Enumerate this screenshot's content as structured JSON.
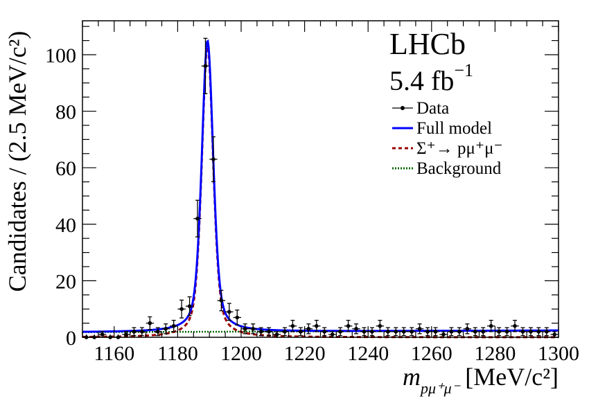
{
  "chart_data": {
    "type": "scatter",
    "experiment": "LHCb",
    "luminosity_text": "5.4 fb",
    "luminosity_exponent": "−1",
    "xlabel_math": "m",
    "xlabel_subscript": "pμ⁺μ⁻",
    "xlabel_units": "[MeV/c²]",
    "ylabel": "Candidates / (2.5 MeV/c²)",
    "xlim": [
      1150,
      1300
    ],
    "ylim": [
      0,
      112
    ],
    "x_ticks": [
      1160,
      1180,
      1200,
      1220,
      1240,
      1260,
      1280,
      1300
    ],
    "y_ticks": [
      0,
      20,
      40,
      60,
      80,
      100
    ],
    "legend_position": "top-right",
    "legend": [
      {
        "key": "data",
        "label": "Data",
        "style": "marker",
        "color": "#000000"
      },
      {
        "key": "full",
        "label": "Full model",
        "style": "solid",
        "color": "#0000ff"
      },
      {
        "key": "signal",
        "label": "Σ⁺→ pμ⁺μ⁻",
        "style": "dashed",
        "color": "#990000"
      },
      {
        "key": "background",
        "label": "Background",
        "style": "dotted",
        "color": "#006600"
      }
    ],
    "bin_width": 2.5,
    "data_points": {
      "x": [
        1151.25,
        1153.75,
        1156.25,
        1158.75,
        1161.25,
        1163.75,
        1166.25,
        1168.75,
        1171.25,
        1173.75,
        1176.25,
        1178.75,
        1181.25,
        1183.75,
        1186.25,
        1188.75,
        1191.25,
        1193.75,
        1196.25,
        1198.75,
        1201.25,
        1203.75,
        1206.25,
        1208.75,
        1211.25,
        1213.75,
        1216.25,
        1218.75,
        1221.25,
        1223.75,
        1226.25,
        1228.75,
        1231.25,
        1233.75,
        1236.25,
        1238.75,
        1241.25,
        1243.75,
        1246.25,
        1248.75,
        1251.25,
        1253.75,
        1256.25,
        1258.75,
        1261.25,
        1263.75,
        1266.25,
        1268.75,
        1271.25,
        1273.75,
        1276.25,
        1278.75,
        1281.25,
        1283.75,
        1286.25,
        1288.75,
        1291.25,
        1293.75,
        1296.25,
        1298.75
      ],
      "y": [
        0,
        0,
        1,
        0,
        0,
        1,
        2,
        2,
        5,
        2,
        3,
        4,
        10,
        11,
        42,
        96,
        63,
        13,
        9,
        7,
        3,
        3,
        2,
        2,
        1,
        2,
        4,
        2,
        3,
        4,
        2,
        1,
        2,
        4,
        3,
        2,
        2,
        4,
        2,
        2,
        2,
        2,
        3,
        2,
        2,
        1,
        2,
        2,
        3,
        2,
        2,
        4,
        2,
        2,
        4,
        2,
        2,
        2,
        2,
        1
      ]
    },
    "model": {
      "mean": 1189.4,
      "signal_amplitude": 103,
      "signal_core_sigma": 1.8,
      "signal_tail_gamma": 2.2,
      "background_x": [
        1150,
        1300
      ],
      "background_y": [
        1.8,
        2.4
      ]
    }
  }
}
